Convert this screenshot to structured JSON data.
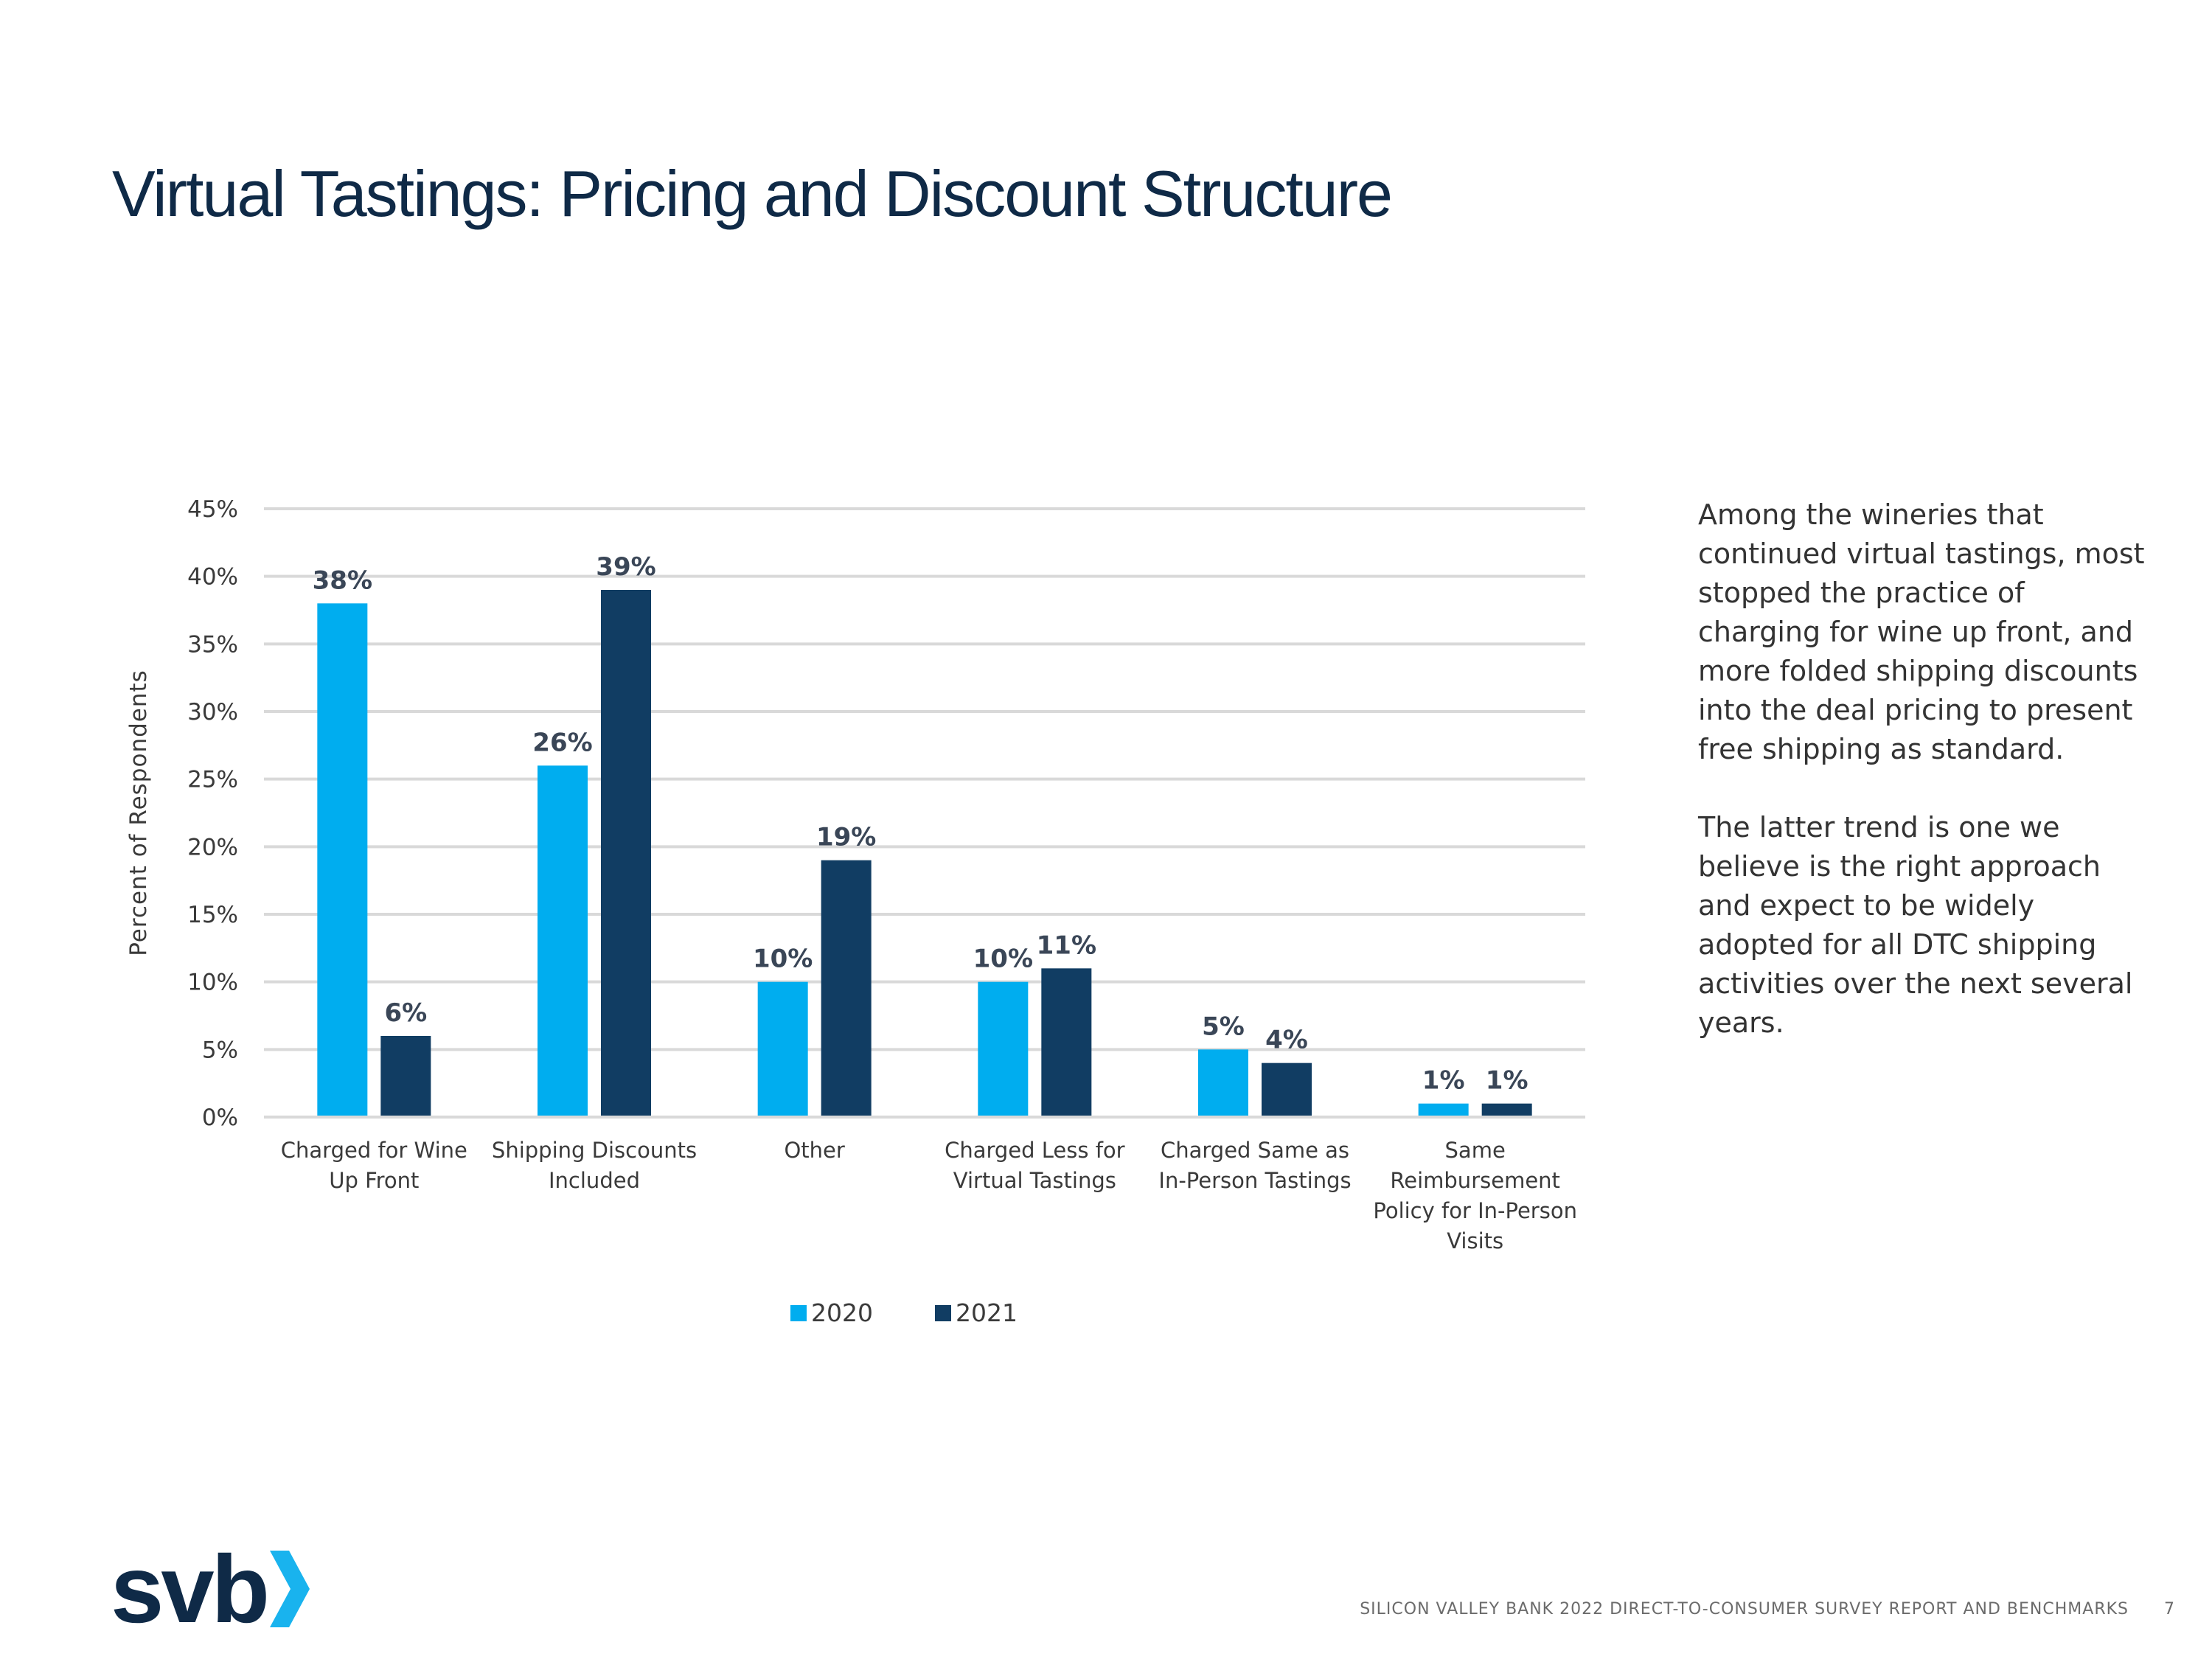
{
  "title": "Virtual Tastings: Pricing and Discount Structure",
  "side_text": [
    "Among the wineries that continued virtual tastings, most stopped the practice of charging for wine up front, and more folded shipping discounts into the deal pricing to present free shipping as standard.",
    "The latter trend is one we believe is the right approach and expect to be widely adopted for all DTC shipping activities over the next several years."
  ],
  "logo": {
    "text": "svb",
    "accent_color": "#19b3ee"
  },
  "footer": {
    "report": "SILICON VALLEY BANK 2022 DIRECT-TO-CONSUMER SURVEY REPORT AND BENCHMARKS",
    "page": "7"
  },
  "chart_data": {
    "type": "bar",
    "ylabel": "Percent of Respondents",
    "ylim": [
      0,
      45
    ],
    "yticks": [
      "0%",
      "5%",
      "10%",
      "15%",
      "20%",
      "25%",
      "30%",
      "35%",
      "40%",
      "45%"
    ],
    "grid": true,
    "legend_position": "bottom",
    "categories": [
      [
        "Charged for Wine",
        "Up Front"
      ],
      [
        "Shipping Discounts",
        "Included"
      ],
      [
        "Other"
      ],
      [
        "Charged Less for",
        "Virtual Tastings"
      ],
      [
        "Charged Same as",
        "In-Person Tastings"
      ],
      [
        "Same",
        "Reimbursement",
        "Policy for In-Person",
        "Visits"
      ]
    ],
    "series": [
      {
        "name": "2020",
        "color": "#00adef",
        "values": [
          38,
          26,
          10,
          10,
          5,
          1
        ]
      },
      {
        "name": "2021",
        "color": "#113d63",
        "values": [
          6,
          39,
          19,
          11,
          4,
          1
        ]
      }
    ]
  }
}
